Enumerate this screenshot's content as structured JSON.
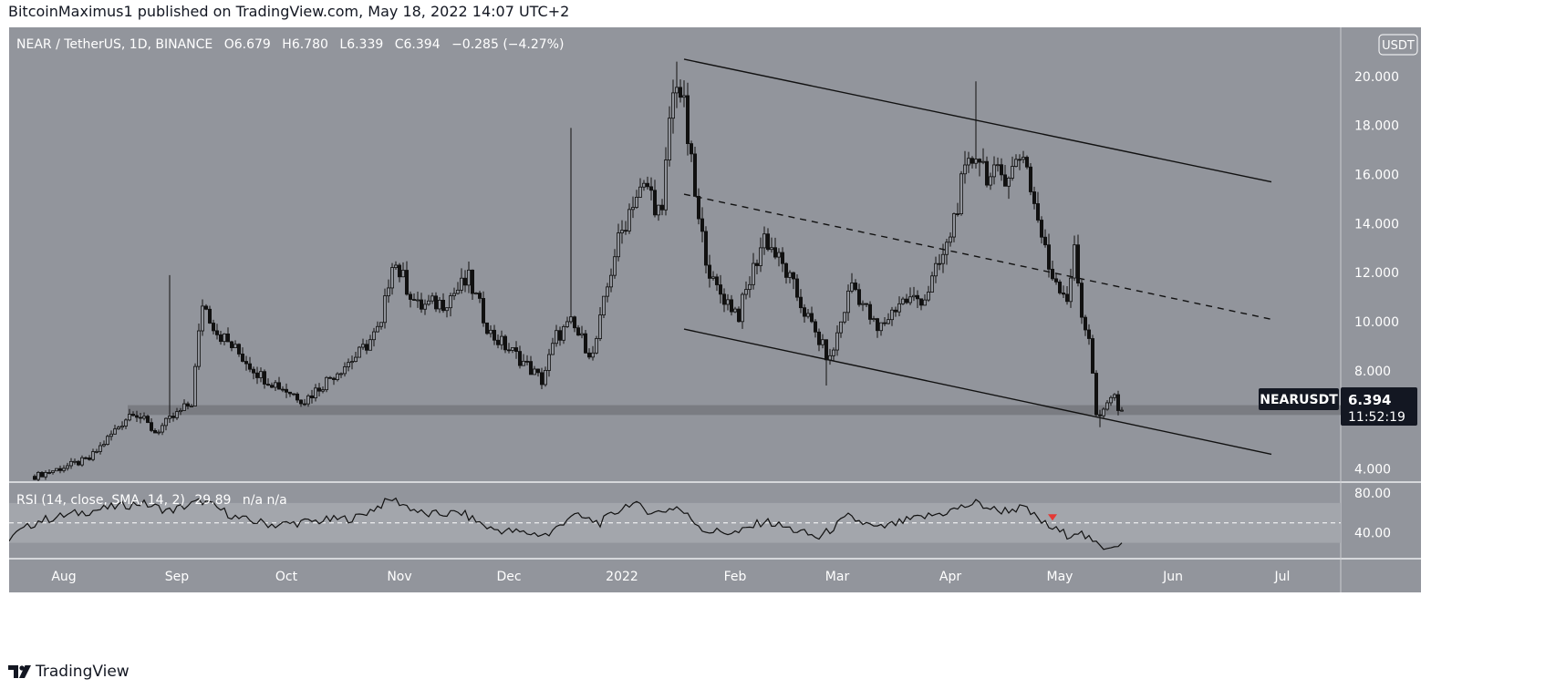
{
  "attribution": "BitcoinMaximus1 published on TradingView.com, May 18, 2022 14:07 UTC+2",
  "legend": {
    "symbol": "NEAR / TetherUS, 1D, BINANCE",
    "o_label": "O",
    "o_value": "6.679",
    "h_label": "H",
    "h_value": "6.780",
    "l_label": "L",
    "l_value": "6.339",
    "c_label": "C",
    "c_value": "6.394",
    "change": "−0.285 (−4.27%)"
  },
  "currency_badge": "USDT",
  "price_tag": {
    "symbol": "NEARUSDT",
    "price": "6.394",
    "countdown": "11:52:19"
  },
  "rsi_legend": {
    "label": "RSI (14, close, SMA, 14, 2)",
    "value": "29.89",
    "extra": "n/a  n/a"
  },
  "footer_logo_text": "TradingView",
  "colors": {
    "price_background": "#92959c",
    "rsi_background": "#92959c",
    "rsi_band": "#a3a6ac",
    "support_zone": "#75787e",
    "candles": "#111111",
    "channel_lines": "#111111",
    "midline": "#111111",
    "axis_text": "#ffffff",
    "price_tag_bg": "#131722",
    "rsi_signal": "#e53935"
  },
  "chart_data": [
    {
      "type": "candlestick",
      "series_id": "NEARUSDT",
      "interval": "1D",
      "ylim": [
        3.5,
        22.0
      ],
      "y_ticks": [
        "4.000",
        "8.000",
        "10.000",
        "12.000",
        "14.000",
        "16.000",
        "18.000",
        "20.000"
      ],
      "y_tick_values": [
        4,
        8,
        10,
        12,
        14,
        16,
        18,
        20
      ],
      "x_ticks": [
        "Aug",
        "Sep",
        "Oct",
        "Nov",
        "Dec",
        "2022",
        "Feb",
        "Mar",
        "Apr",
        "May",
        "Jun",
        "Jul"
      ],
      "x_tick_dates": [
        "2021-08-01",
        "2021-09-01",
        "2021-10-01",
        "2021-11-01",
        "2021-12-01",
        "2022-01-01",
        "2022-02-01",
        "2022-03-01",
        "2022-04-01",
        "2022-05-01",
        "2022-06-01",
        "2022-07-01"
      ],
      "x_range_dates": [
        "2021-07-17",
        "2022-07-17"
      ],
      "close_anchors": [
        [
          "2021-07-24",
          3.7
        ],
        [
          "2021-08-08",
          4.4
        ],
        [
          "2021-08-20",
          6.4
        ],
        [
          "2021-08-26",
          5.5
        ],
        [
          "2021-09-05",
          6.7
        ],
        [
          "2021-09-08",
          10.8
        ],
        [
          "2021-09-12",
          9.6
        ],
        [
          "2021-09-24",
          7.8
        ],
        [
          "2021-10-06",
          6.8
        ],
        [
          "2021-10-15",
          8.0
        ],
        [
          "2021-10-21",
          8.7
        ],
        [
          "2021-10-27",
          9.8
        ],
        [
          "2021-10-30",
          12.6
        ],
        [
          "2021-11-06",
          10.6
        ],
        [
          "2021-11-13",
          10.8
        ],
        [
          "2021-11-20",
          11.7
        ],
        [
          "2021-11-26",
          9.5
        ],
        [
          "2021-12-04",
          8.5
        ],
        [
          "2021-12-10",
          7.6
        ],
        [
          "2021-12-14",
          9.4
        ],
        [
          "2021-12-18",
          9.9
        ],
        [
          "2021-12-24",
          8.6
        ],
        [
          "2021-12-30",
          12.8
        ],
        [
          "2022-01-04",
          15.0
        ],
        [
          "2022-01-08",
          15.5
        ],
        [
          "2022-01-12",
          14.2
        ],
        [
          "2022-01-14",
          18.3
        ],
        [
          "2022-01-16",
          20.0
        ],
        [
          "2022-01-18",
          18.6
        ],
        [
          "2022-01-22",
          14.0
        ],
        [
          "2022-01-26",
          11.5
        ],
        [
          "2022-02-02",
          10.3
        ],
        [
          "2022-02-09",
          13.5
        ],
        [
          "2022-02-15",
          12.0
        ],
        [
          "2022-02-22",
          9.8
        ],
        [
          "2022-02-27",
          8.4
        ],
        [
          "2022-03-05",
          11.6
        ],
        [
          "2022-03-12",
          9.6
        ],
        [
          "2022-03-18",
          10.8
        ],
        [
          "2022-03-25",
          11.0
        ],
        [
          "2022-03-31",
          13.0
        ],
        [
          "2022-04-04",
          15.5
        ],
        [
          "2022-04-08",
          17.0
        ],
        [
          "2022-04-12",
          15.8
        ],
        [
          "2022-04-18",
          16.2
        ],
        [
          "2022-04-21",
          17.0
        ],
        [
          "2022-04-24",
          14.8
        ],
        [
          "2022-04-28",
          12.2
        ],
        [
          "2022-05-03",
          11.0
        ],
        [
          "2022-05-05",
          12.8
        ],
        [
          "2022-05-07",
          10.3
        ],
        [
          "2022-05-09",
          9.4
        ],
        [
          "2022-05-11",
          6.2
        ],
        [
          "2022-05-12",
          6.0
        ],
        [
          "2022-05-15",
          7.0
        ],
        [
          "2022-05-18",
          6.394
        ]
      ],
      "notable_wicks": [
        [
          "2021-08-30",
          11.9
        ],
        [
          "2021-12-18",
          17.9
        ],
        [
          "2022-01-16",
          20.6
        ],
        [
          "2022-02-26",
          7.4
        ],
        [
          "2022-04-08",
          19.8
        ],
        [
          "2022-05-12",
          5.7
        ]
      ],
      "support_zone": [
        6.2,
        6.6
      ],
      "descending_channel": {
        "upper": [
          [
            "2022-01-18",
            20.7
          ],
          [
            "2022-06-28",
            15.7
          ]
        ],
        "middle": [
          [
            "2022-01-18",
            15.2
          ],
          [
            "2022-06-28",
            10.1
          ]
        ],
        "lower": [
          [
            "2022-01-18",
            9.7
          ],
          [
            "2022-06-28",
            4.6
          ]
        ]
      },
      "last": {
        "close": 6.394
      }
    },
    {
      "type": "line",
      "series_id": "RSI",
      "title": "RSI (14, close, SMA, 14, 2)",
      "ylim": [
        15,
        90
      ],
      "y_ticks": [
        "40.00",
        "80.00"
      ],
      "y_tick_values": [
        40,
        80
      ],
      "band": [
        30,
        70
      ],
      "midline": 50,
      "anchors": [
        [
          "2021-07-17",
          35
        ],
        [
          "2021-07-25",
          52
        ],
        [
          "2021-08-05",
          60
        ],
        [
          "2021-08-15",
          66
        ],
        [
          "2021-08-22",
          70
        ],
        [
          "2021-08-30",
          62
        ],
        [
          "2021-09-08",
          72
        ],
        [
          "2021-09-18",
          54
        ],
        [
          "2021-09-28",
          48
        ],
        [
          "2021-10-10",
          52
        ],
        [
          "2021-10-20",
          55
        ],
        [
          "2021-10-30",
          74
        ],
        [
          "2021-11-08",
          58
        ],
        [
          "2021-11-18",
          60
        ],
        [
          "2021-11-26",
          44
        ],
        [
          "2021-12-05",
          40
        ],
        [
          "2021-12-12",
          38
        ],
        [
          "2021-12-18",
          58
        ],
        [
          "2021-12-26",
          50
        ],
        [
          "2022-01-03",
          70
        ],
        [
          "2022-01-10",
          60
        ],
        [
          "2022-01-16",
          66
        ],
        [
          "2022-01-24",
          42
        ],
        [
          "2022-02-02",
          40
        ],
        [
          "2022-02-09",
          52
        ],
        [
          "2022-02-16",
          44
        ],
        [
          "2022-02-24",
          35
        ],
        [
          "2022-03-04",
          56
        ],
        [
          "2022-03-12",
          44
        ],
        [
          "2022-03-20",
          52
        ],
        [
          "2022-03-30",
          60
        ],
        [
          "2022-04-08",
          70
        ],
        [
          "2022-04-14",
          62
        ],
        [
          "2022-04-21",
          65
        ],
        [
          "2022-04-28",
          46
        ],
        [
          "2022-05-03",
          38
        ],
        [
          "2022-05-06",
          42
        ],
        [
          "2022-05-10",
          30
        ],
        [
          "2022-05-13",
          26
        ],
        [
          "2022-05-18",
          29.89
        ]
      ],
      "signal_marker": [
        "2022-04-29",
        55
      ]
    }
  ]
}
